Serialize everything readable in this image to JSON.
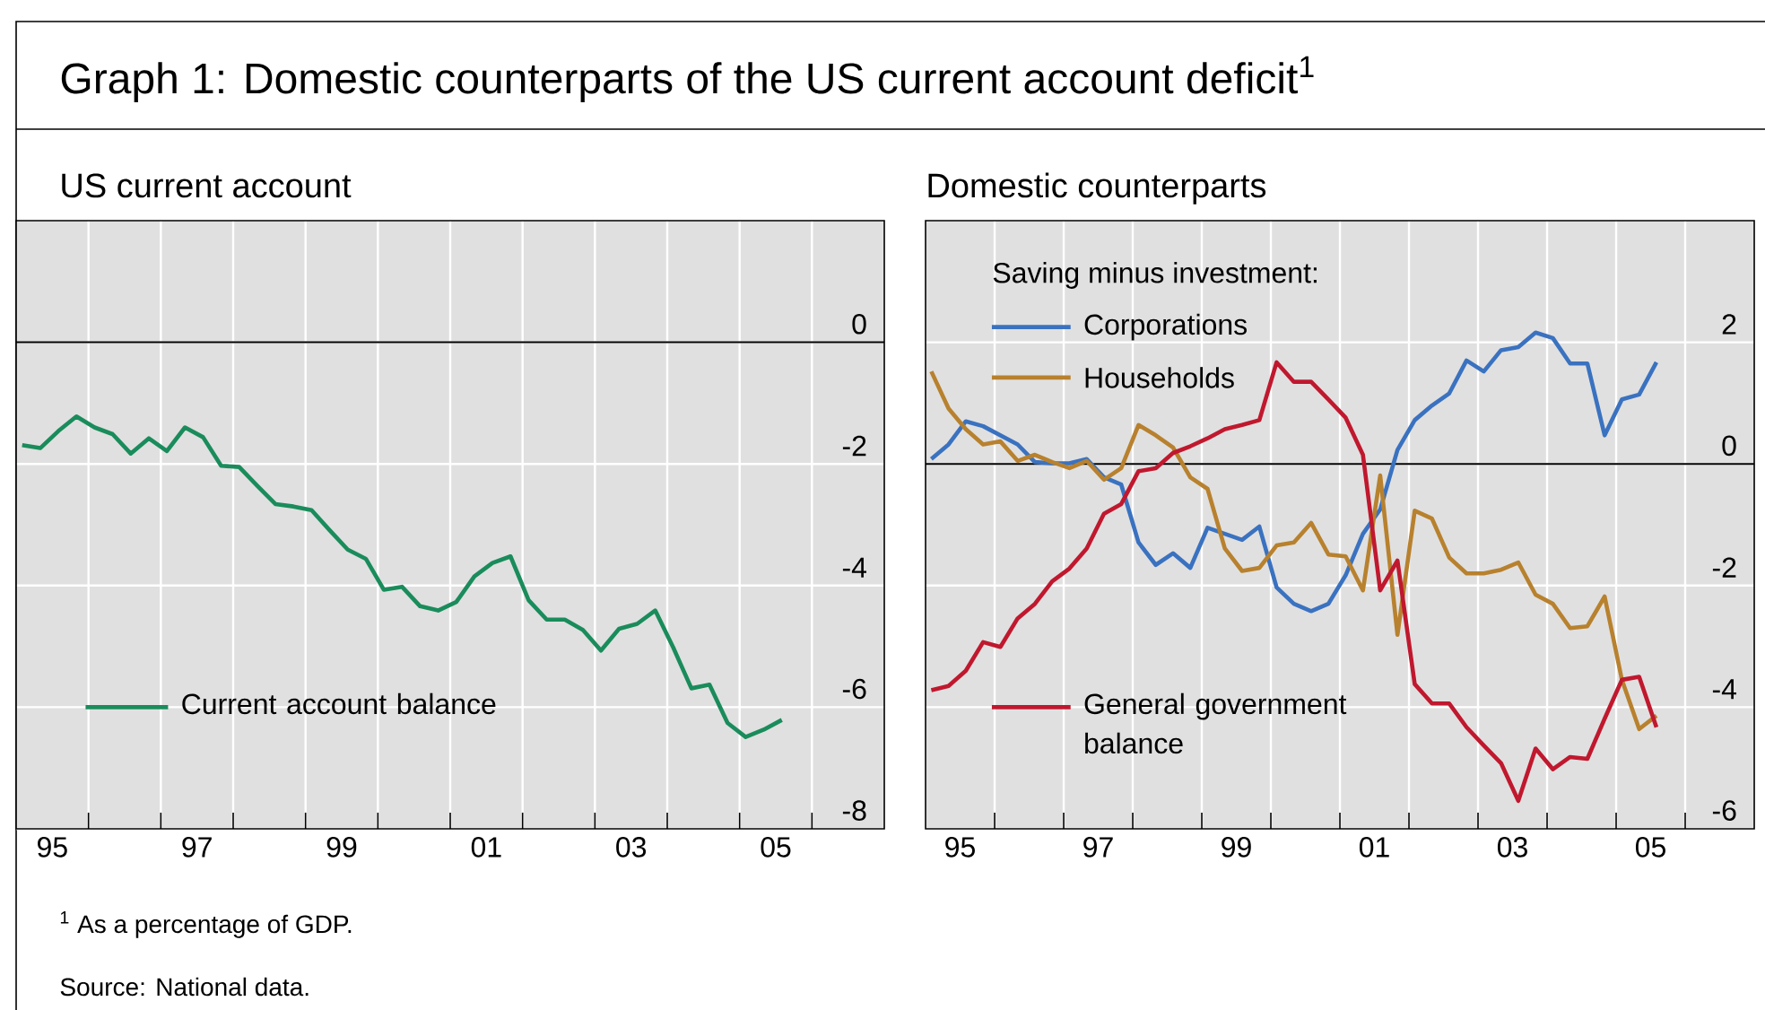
{
  "chart_data": [
    {
      "type": "line",
      "title": "Graph 1: Domestic counterparts of the US current account deficit$^{1}$",
      "subtitle": "US current account",
      "annotations": [
        "$^{1}$ As a percentage of GDP.",
        "Source: National data."
      ],
      "x": [
        "1995-02",
        "1995-05",
        "1995-08",
        "1995-11",
        "1996-02",
        "1996-05",
        "1996-08",
        "1996-11",
        "1997-02",
        "1997-05",
        "1997-08",
        "1997-11",
        "1998-02",
        "1998-05",
        "1998-08",
        "1998-11",
        "1999-02",
        "1999-05",
        "1999-08",
        "1999-11",
        "2000-02",
        "2000-05",
        "2000-08",
        "2000-11",
        "2001-02",
        "2001-05",
        "2001-08",
        "2001-11",
        "2002-02",
        "2002-05",
        "2002-08",
        "2002-11",
        "2003-02",
        "2003-05",
        "2003-08",
        "2003-11",
        "2004-02",
        "2004-05",
        "2004-08",
        "2004-11",
        "2005-02",
        "2005-05",
        "2005-08"
      ],
      "series": [
        {
          "name": "Current account balance",
          "color": "#1a8c5b",
          "values": [
            -1.69,
            -1.74,
            -1.46,
            -1.22,
            -1.4,
            -1.51,
            -1.83,
            -1.58,
            -1.79,
            -1.4,
            -1.56,
            -2.03,
            -2.05,
            -2.36,
            -2.66,
            -2.7,
            -2.76,
            -3.09,
            -3.41,
            -3.56,
            -4.07,
            -4.02,
            -4.34,
            -4.41,
            -4.27,
            -3.85,
            -3.63,
            -3.52,
            -4.24,
            -4.56,
            -4.56,
            -4.73,
            -5.07,
            -4.71,
            -4.63,
            -4.41,
            -5.02,
            -5.69,
            -5.63,
            -6.26,
            -6.49,
            -6.37,
            -6.21
          ]
        }
      ],
      "xlim": [
        "1995",
        "2007"
      ],
      "ylim": [
        -8,
        2
      ],
      "xticks": [
        {
          "value": "1995-07",
          "label": "95"
        },
        {
          "value": "1996",
          "label": null
        },
        {
          "value": "1997",
          "label": null
        },
        {
          "value": "1997-07",
          "label": "97"
        },
        {
          "value": "1998",
          "label": null
        },
        {
          "value": "1999",
          "label": null
        },
        {
          "value": "1999-07",
          "label": "99"
        },
        {
          "value": "2000",
          "label": null
        },
        {
          "value": "2001",
          "label": null
        },
        {
          "value": "2001-07",
          "label": "01"
        },
        {
          "value": "2002",
          "label": null
        },
        {
          "value": "2003",
          "label": null
        },
        {
          "value": "2003-07",
          "label": "03"
        },
        {
          "value": "2004",
          "label": null
        },
        {
          "value": "2005",
          "label": null
        },
        {
          "value": "2005-07",
          "label": "05"
        },
        {
          "value": "2006",
          "label": null
        }
      ],
      "yticks": [
        0,
        -2,
        -4,
        -6,
        -8
      ],
      "grid": true,
      "legend": "bottom left",
      "ref_lines": [
        {
          "axis": "y",
          "value": 0
        }
      ]
    },
    {
      "type": "line",
      "title": "Domestic counterparts",
      "legend_title": "Saving minus investment:",
      "x": [
        "1995-02",
        "1995-05",
        "1995-08",
        "1995-11",
        "1996-02",
        "1996-05",
        "1996-08",
        "1996-11",
        "1997-02",
        "1997-05",
        "1997-08",
        "1997-11",
        "1998-02",
        "1998-05",
        "1998-08",
        "1998-11",
        "1999-02",
        "1999-05",
        "1999-08",
        "1999-11",
        "2000-02",
        "2000-05",
        "2000-08",
        "2000-11",
        "2001-02",
        "2001-05",
        "2001-08",
        "2001-11",
        "2002-02",
        "2002-05",
        "2002-08",
        "2002-11",
        "2003-02",
        "2003-05",
        "2003-08",
        "2003-11",
        "2004-02",
        "2004-05",
        "2004-08",
        "2004-11",
        "2005-02",
        "2005-05",
        "2005-08"
      ],
      "series": [
        {
          "name": "Corporations",
          "color": "#3a72c0",
          "values": [
            0.08,
            0.32,
            0.7,
            0.62,
            0.47,
            0.32,
            0.03,
            0.01,
            0.01,
            0.08,
            -0.22,
            -0.34,
            -1.29,
            -1.66,
            -1.47,
            -1.71,
            -1.05,
            -1.15,
            -1.25,
            -1.03,
            -2.03,
            -2.3,
            -2.42,
            -2.3,
            -1.83,
            -1.15,
            -0.75,
            0.23,
            0.72,
            0.96,
            1.16,
            1.7,
            1.52,
            1.87,
            1.92,
            2.16,
            2.07,
            1.65,
            1.65,
            0.47,
            1.06,
            1.14,
            1.67
          ]
        },
        {
          "name": "Households",
          "color": "#b8812e",
          "values": [
            1.52,
            0.91,
            0.57,
            0.32,
            0.37,
            0.05,
            0.15,
            0.03,
            -0.07,
            0.05,
            -0.26,
            -0.07,
            0.64,
            0.47,
            0.27,
            -0.22,
            -0.41,
            -1.39,
            -1.76,
            -1.71,
            -1.34,
            -1.29,
            -0.97,
            -1.49,
            -1.52,
            -2.08,
            -0.19,
            -2.81,
            -0.77,
            -0.9,
            -1.54,
            -1.8,
            -1.8,
            -1.74,
            -1.62,
            -2.15,
            -2.3,
            -2.7,
            -2.67,
            -2.18,
            -3.55,
            -4.36,
            -4.14
          ]
        },
        {
          "name": "General government balance",
          "color": "#c0182e",
          "values": [
            -3.72,
            -3.65,
            -3.4,
            -2.93,
            -3.01,
            -2.54,
            -2.3,
            -1.93,
            -1.72,
            -1.39,
            -0.82,
            -0.66,
            -0.12,
            -0.07,
            0.18,
            0.29,
            0.42,
            0.57,
            0.64,
            0.72,
            1.67,
            1.35,
            1.35,
            1.06,
            0.76,
            0.15,
            -2.08,
            -1.59,
            -3.62,
            -3.94,
            -3.94,
            -4.33,
            -4.63,
            -4.92,
            -5.54,
            -4.68,
            -5.02,
            -4.82,
            -4.85,
            -4.19,
            -3.55,
            -3.5,
            -4.33
          ]
        }
      ],
      "xlim": [
        "1995",
        "2007"
      ],
      "ylim": [
        -6,
        4
      ],
      "xticks": [
        {
          "value": "1995-07",
          "label": "95"
        },
        {
          "value": "1996",
          "label": null
        },
        {
          "value": "1997",
          "label": null
        },
        {
          "value": "1997-07",
          "label": "97"
        },
        {
          "value": "1998",
          "label": null
        },
        {
          "value": "1999",
          "label": null
        },
        {
          "value": "1999-07",
          "label": "99"
        },
        {
          "value": "2000",
          "label": null
        },
        {
          "value": "2001",
          "label": null
        },
        {
          "value": "2001-07",
          "label": "01"
        },
        {
          "value": "2002",
          "label": null
        },
        {
          "value": "2003",
          "label": null
        },
        {
          "value": "2003-07",
          "label": "03"
        },
        {
          "value": "2004",
          "label": null
        },
        {
          "value": "2005",
          "label": null
        },
        {
          "value": "2005-07",
          "label": "05"
        },
        {
          "value": "2006",
          "label": null
        }
      ],
      "yticks": [
        2,
        0,
        -2,
        -4,
        -6
      ],
      "grid": true,
      "legend": "left",
      "ref_lines": [
        {
          "axis": "y",
          "value": 0
        }
      ]
    }
  ]
}
